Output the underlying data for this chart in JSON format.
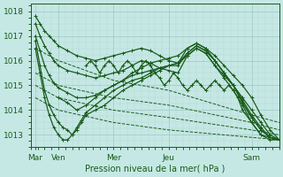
{
  "xlabel": "Pression niveau de la mer( hPa )",
  "bg_color": "#c5e8e5",
  "grid_color_major": "#9dc8c2",
  "grid_color_minor": "#b5d8d4",
  "line_color": "#1a5c1a",
  "ylim": [
    1012.5,
    1018.3
  ],
  "xlim": [
    0,
    108
  ],
  "xtick_positions": [
    2,
    12,
    36,
    60,
    96
  ],
  "xtick_labels": [
    "Mar",
    "Ven",
    "Mer",
    "Jeu",
    "Sam"
  ],
  "ytick_positions": [
    1013,
    1014,
    1015,
    1016,
    1017,
    1018
  ],
  "figsize": [
    3.2,
    2.0
  ],
  "dpi": 100,
  "lines": [
    {
      "x": [
        2,
        4,
        6,
        8,
        10,
        12,
        16,
        20,
        24,
        28,
        32,
        36,
        40,
        44,
        48,
        52,
        56,
        60,
        64,
        68,
        72,
        76,
        80,
        84,
        88,
        92,
        96,
        100,
        104,
        108
      ],
      "y": [
        1017.8,
        1017.5,
        1017.2,
        1017.0,
        1016.8,
        1016.6,
        1016.4,
        1016.2,
        1016.1,
        1016.0,
        1016.1,
        1016.2,
        1016.3,
        1016.4,
        1016.5,
        1016.4,
        1016.2,
        1016.0,
        1015.9,
        1016.5,
        1016.7,
        1016.5,
        1016.2,
        1015.8,
        1015.4,
        1015.0,
        1014.5,
        1013.8,
        1013.2,
        1012.8
      ],
      "style": "-",
      "marker": "+",
      "lw": 0.9,
      "ms": 2.5
    },
    {
      "x": [
        2,
        4,
        6,
        8,
        10,
        12,
        16,
        20,
        24,
        28,
        32,
        36,
        40,
        44,
        48,
        52,
        56,
        60,
        64,
        68,
        72,
        76,
        80,
        84,
        88,
        92,
        96,
        100,
        104,
        108
      ],
      "y": [
        1017.5,
        1017.0,
        1016.6,
        1016.3,
        1016.0,
        1015.8,
        1015.6,
        1015.5,
        1015.4,
        1015.3,
        1015.4,
        1015.5,
        1015.6,
        1015.8,
        1016.0,
        1015.9,
        1015.7,
        1015.6,
        1015.5,
        1016.2,
        1016.5,
        1016.3,
        1015.8,
        1015.4,
        1015.0,
        1014.5,
        1014.0,
        1013.5,
        1013.0,
        1012.8
      ],
      "style": "-",
      "marker": "+",
      "lw": 0.9,
      "ms": 2.5
    },
    {
      "x": [
        2,
        4,
        6,
        8,
        10,
        12,
        16,
        20,
        24,
        28,
        32,
        36,
        40,
        44,
        48,
        52,
        56,
        60,
        64,
        68,
        72,
        76,
        80,
        84,
        88,
        92,
        96,
        100,
        104,
        108
      ],
      "y": [
        1017.0,
        1016.4,
        1015.8,
        1015.4,
        1015.1,
        1014.9,
        1014.7,
        1014.5,
        1014.5,
        1014.6,
        1014.8,
        1015.0,
        1015.2,
        1015.4,
        1015.5,
        1015.6,
        1015.7,
        1015.8,
        1015.8,
        1016.3,
        1016.6,
        1016.4,
        1016.0,
        1015.5,
        1015.0,
        1014.4,
        1013.8,
        1013.3,
        1012.9,
        1012.8
      ],
      "style": "-",
      "marker": "+",
      "lw": 0.9,
      "ms": 2.5
    },
    {
      "x": [
        2,
        4,
        6,
        8,
        10,
        12,
        14,
        16,
        18,
        20,
        22,
        24,
        28,
        32,
        36,
        40,
        44,
        48,
        52,
        56,
        60,
        64,
        68,
        72,
        76,
        80,
        84,
        88,
        92,
        96,
        100,
        104,
        108
      ],
      "y": [
        1016.8,
        1015.8,
        1014.8,
        1014.2,
        1013.8,
        1013.5,
        1013.3,
        1013.2,
        1013.0,
        1013.2,
        1013.5,
        1013.8,
        1014.0,
        1014.2,
        1014.5,
        1014.8,
        1015.0,
        1015.2,
        1015.4,
        1015.6,
        1015.8,
        1015.9,
        1016.3,
        1016.6,
        1016.4,
        1016.0,
        1015.5,
        1015.0,
        1014.3,
        1013.7,
        1013.2,
        1012.9,
        1012.8
      ],
      "style": "-",
      "marker": "+",
      "lw": 0.9,
      "ms": 2.5
    },
    {
      "x": [
        2,
        4,
        6,
        8,
        10,
        12,
        14,
        16,
        18,
        20,
        22,
        24,
        28,
        32,
        36,
        40,
        44,
        48,
        52,
        56,
        60,
        64,
        68,
        72,
        76,
        80,
        84,
        88,
        92,
        96,
        100,
        104,
        108
      ],
      "y": [
        1016.5,
        1015.5,
        1014.5,
        1013.8,
        1013.3,
        1013.0,
        1012.8,
        1012.8,
        1013.0,
        1013.3,
        1013.6,
        1013.9,
        1014.2,
        1014.5,
        1014.8,
        1015.0,
        1015.2,
        1015.3,
        1015.5,
        1015.7,
        1015.8,
        1015.9,
        1016.2,
        1016.5,
        1016.3,
        1015.8,
        1015.3,
        1014.8,
        1014.2,
        1013.5,
        1013.0,
        1012.8,
        1012.8
      ],
      "style": "-",
      "marker": "+",
      "lw": 0.9,
      "ms": 2.5
    },
    {
      "x": [
        2,
        12,
        36,
        60,
        96,
        108
      ],
      "y": [
        1016.5,
        1016.0,
        1015.2,
        1014.8,
        1013.8,
        1013.5
      ],
      "style": "--",
      "marker": null,
      "lw": 0.7,
      "ms": 0
    },
    {
      "x": [
        2,
        12,
        36,
        60,
        96,
        108
      ],
      "y": [
        1015.5,
        1015.0,
        1014.5,
        1014.2,
        1013.5,
        1013.2
      ],
      "style": "--",
      "marker": null,
      "lw": 0.7,
      "ms": 0
    },
    {
      "x": [
        2,
        12,
        36,
        60,
        96,
        108
      ],
      "y": [
        1015.0,
        1014.5,
        1014.0,
        1013.7,
        1013.2,
        1013.0
      ],
      "style": "--",
      "marker": null,
      "lw": 0.7,
      "ms": 0
    },
    {
      "x": [
        2,
        12,
        36,
        60,
        96,
        108
      ],
      "y": [
        1014.5,
        1014.0,
        1013.5,
        1013.2,
        1012.9,
        1012.8
      ],
      "style": "--",
      "marker": null,
      "lw": 0.7,
      "ms": 0
    },
    {
      "x": [
        12,
        16,
        20,
        24,
        28,
        32,
        36,
        40,
        44,
        48,
        52,
        56,
        60,
        64,
        68,
        72,
        76,
        80,
        84,
        88,
        92,
        96,
        100,
        104,
        108
      ],
      "y": [
        1014.5,
        1014.3,
        1014.0,
        1014.2,
        1014.5,
        1014.8,
        1015.0,
        1015.2,
        1015.5,
        1015.7,
        1015.9,
        1016.0,
        1016.1,
        1016.2,
        1016.5,
        1016.7,
        1016.5,
        1016.0,
        1015.5,
        1015.0,
        1014.3,
        1013.7,
        1013.2,
        1012.9,
        1012.8
      ],
      "style": "-",
      "marker": "+",
      "lw": 0.9,
      "ms": 2.5
    },
    {
      "x": [
        24,
        26,
        28,
        30,
        32,
        34,
        36,
        38,
        40,
        42,
        44,
        46,
        48,
        50,
        52,
        54,
        56,
        58,
        60,
        62,
        64,
        66,
        68,
        70,
        72,
        74,
        76,
        78,
        80,
        82,
        84,
        86,
        88,
        90,
        92,
        96,
        100,
        104,
        108
      ],
      "y": [
        1015.8,
        1016.0,
        1015.8,
        1015.5,
        1015.8,
        1016.0,
        1015.8,
        1015.5,
        1015.8,
        1016.0,
        1015.8,
        1015.5,
        1015.8,
        1016.0,
        1015.8,
        1015.5,
        1015.3,
        1015.0,
        1015.2,
        1015.5,
        1015.3,
        1015.0,
        1014.8,
        1015.0,
        1015.2,
        1015.0,
        1014.8,
        1015.0,
        1015.2,
        1015.0,
        1014.8,
        1015.0,
        1014.8,
        1014.5,
        1014.0,
        1013.5,
        1013.0,
        1012.9,
        1012.8
      ],
      "style": "-",
      "marker": "+",
      "lw": 0.9,
      "ms": 2.5
    }
  ]
}
